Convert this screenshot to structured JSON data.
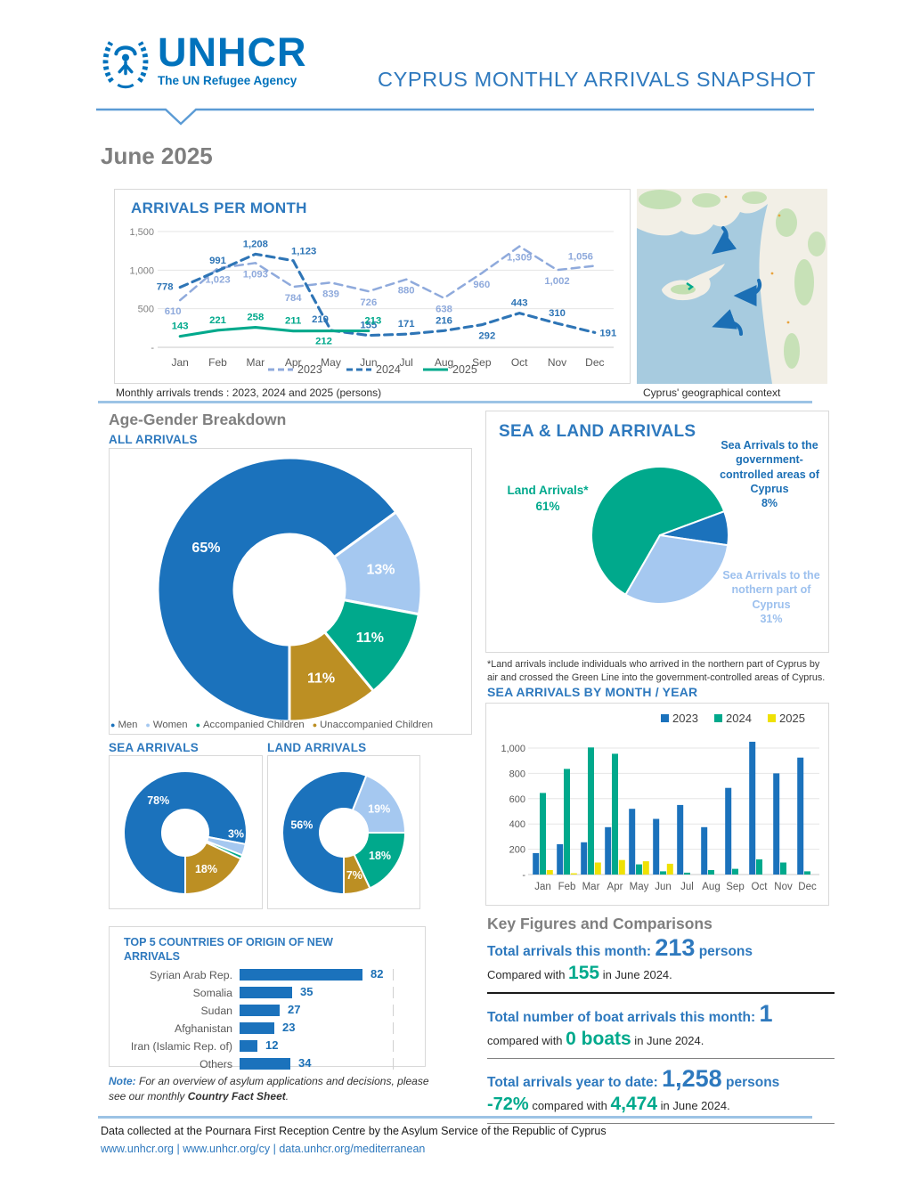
{
  "header": {
    "title": "CYPRUS MONTHLY ARRIVALS SNAPSHOT",
    "logo": {
      "name": "UNHCR",
      "tagline": "The UN Refugee Agency"
    }
  },
  "period": "June 2025",
  "sections": {
    "age_gender_heading": "Age-Gender Breakdown",
    "map_caption": "Cyprus' geographical context"
  },
  "colors": {
    "brand_blue": "#0072BC",
    "heading_blue": "#2E79BE",
    "dark_blue": "#1B72BC",
    "light_blue": "#8FAADC",
    "pale_blue": "#A5C8F0",
    "teal": "#00A98C",
    "gold": "#BC8F23",
    "yellow": "#EFE104",
    "gray_heading": "#7F7F7F"
  },
  "chart_data": [
    {
      "id": "arrivals_per_month",
      "type": "line",
      "title": "ARRIVALS PER MONTH",
      "caption": "Monthly arrivals trends : 2023, 2024 and 2025 (persons)",
      "categories": [
        "Jan",
        "Feb",
        "Mar",
        "Apr",
        "May",
        "Jun",
        "Jul",
        "Aug",
        "Sep",
        "Oct",
        "Nov",
        "Dec"
      ],
      "ylim": [
        0,
        1500
      ],
      "yticks": [
        {
          "v": 0,
          "label": "-"
        },
        {
          "v": 500,
          "label": "500"
        },
        {
          "v": 1000,
          "label": "1,000"
        },
        {
          "v": 1500,
          "label": "1,500"
        }
      ],
      "grid": true,
      "legend_position": "bottom",
      "series": [
        {
          "name": "2023",
          "line": "dashed",
          "color": "#8FAADC",
          "values": [
            610,
            1023,
            1093,
            784,
            839,
            726,
            880,
            638,
            960,
            1309,
            1002,
            1056
          ]
        },
        {
          "name": "2024",
          "line": "dashed",
          "color": "#2E75B6",
          "values": [
            778,
            991,
            1208,
            1123,
            219,
            155,
            171,
            216,
            292,
            443,
            310,
            191
          ]
        },
        {
          "name": "2025",
          "line": "solid",
          "color": "#00A98C",
          "values": [
            143,
            221,
            258,
            211,
            212,
            213
          ]
        }
      ]
    },
    {
      "id": "all_arrivals",
      "type": "donut",
      "title": "ALL ARRIVALS",
      "start_angle": 180,
      "slices": [
        {
          "label": "Men",
          "pct": 65,
          "color": "#1B72BC"
        },
        {
          "label": "Women",
          "pct": 13,
          "color": "#A5C8F0"
        },
        {
          "label": "Accompanied Children",
          "pct": 11,
          "color": "#00A98C"
        },
        {
          "label": "Unaccompanied Children",
          "pct": 11,
          "color": "#BC8F23"
        }
      ],
      "legend": [
        "Men",
        "Women",
        "Accompanied Children",
        "Unaccompanied Children"
      ]
    },
    {
      "id": "sea_arrivals",
      "type": "donut",
      "title": "SEA ARRIVALS",
      "start_angle": 180,
      "slices": [
        {
          "label": "Men",
          "pct": 78,
          "color": "#1B72BC"
        },
        {
          "label": "Women",
          "pct": 3,
          "color": "#A5C8F0"
        },
        {
          "label": "Accompanied Children",
          "pct": 1,
          "color": "#00A98C"
        },
        {
          "label": "Unaccompanied Children",
          "pct": 18,
          "color": "#BC8F23"
        }
      ]
    },
    {
      "id": "land_arrivals",
      "type": "donut",
      "title": "LAND ARRIVALS",
      "start_angle": 180,
      "slices": [
        {
          "label": "Men",
          "pct": 56,
          "color": "#1B72BC"
        },
        {
          "label": "Women",
          "pct": 19,
          "color": "#A5C8F0"
        },
        {
          "label": "Accompanied Children",
          "pct": 18,
          "color": "#00A98C"
        },
        {
          "label": "Unaccompanied Children",
          "pct": 7,
          "color": "#BC8F23"
        }
      ]
    },
    {
      "id": "sea_land",
      "type": "pie",
      "title": "SEA & LAND ARRIVALS",
      "start_angle": 210,
      "slices": [
        {
          "label": "Land Arrivals*",
          "pct": 61,
          "color": "#00A98C"
        },
        {
          "label": "Sea Arrivals to the government-controlled areas of Cyprus",
          "pct": 8,
          "color": "#1B72BC"
        },
        {
          "label": "Sea Arrivals to the nothern part of Cyprus",
          "pct": 31,
          "color": "#A5C8F0"
        }
      ],
      "footnote": "*Land arrivals include individuals who arrived in the northern part of Cyprus by air and crossed the Green Line into the government-controlled areas of Cyprus."
    },
    {
      "id": "sea_by_month",
      "type": "bar",
      "title": "SEA ARRIVALS BY MONTH / YEAR",
      "categories": [
        "Jan",
        "Feb",
        "Mar",
        "Apr",
        "May",
        "Jun",
        "Jul",
        "Aug",
        "Sep",
        "Oct",
        "Nov",
        "Dec"
      ],
      "ylim": [
        0,
        1100
      ],
      "yticks": [
        {
          "v": 0,
          "label": "-"
        },
        {
          "v": 200,
          "label": "200"
        },
        {
          "v": 400,
          "label": "400"
        },
        {
          "v": 600,
          "label": "600"
        },
        {
          "v": 800,
          "label": "800"
        },
        {
          "v": 1000,
          "label": "1,000"
        }
      ],
      "legend_position": "top-right",
      "series": [
        {
          "name": "2023",
          "color": "#1B72BC",
          "values": [
            170,
            240,
            255,
            375,
            520,
            440,
            550,
            375,
            685,
            1050,
            800,
            925
          ]
        },
        {
          "name": "2024",
          "color": "#00A98C",
          "values": [
            645,
            835,
            1005,
            955,
            80,
            25,
            15,
            35,
            45,
            120,
            95,
            25
          ]
        },
        {
          "name": "2025",
          "color": "#EFE104",
          "values": [
            35,
            10,
            95,
            115,
            105,
            85,
            null,
            null,
            null,
            null,
            null,
            null
          ]
        }
      ]
    },
    {
      "id": "top5_countries",
      "type": "hbar",
      "title": "TOP 5 COUNTRIES OF ORIGIN OF NEW ARRIVALS",
      "categories": [
        "Syrian Arab Rep.",
        "Somalia",
        "Sudan",
        "Afghanistan",
        "Iran (Islamic Rep. of)",
        "Others"
      ],
      "values": [
        82,
        35,
        27,
        23,
        12,
        34
      ],
      "xlim": [
        0,
        100
      ]
    }
  ],
  "key_figures": {
    "heading": "Key Figures and Comparisons",
    "rows": [
      {
        "label": "Total arrivals this month: ",
        "value": "213",
        "suffix": " persons",
        "cmp_pre": "Compared with ",
        "cmp_val": "155",
        "cmp_post": " in June 2024."
      },
      {
        "label": "Total number of boat arrivals this month: ",
        "value": "1",
        "suffix": "",
        "cmp_pre": "compared with ",
        "cmp_val": "0 boats",
        "cmp_post": " in June 2024."
      },
      {
        "label": "Total arrivals year to date: ",
        "value": "1,258",
        "suffix": " persons",
        "delta": "-72%",
        "cmp_pre": " compared with ",
        "cmp_val": "4,474",
        "cmp_post": " in June 2024."
      }
    ]
  },
  "note": {
    "prefix": "Note:",
    "body": " For an overview of asylum applications and decisions, please see our monthly ",
    "bold": "Country Fact Sheet",
    "suffix": "."
  },
  "footer": {
    "source": "Data collected at the Pournara First Reception Centre by the Asylum Service of the Republic of Cyprus",
    "links": [
      "www.unhcr.org",
      "www.unhcr.org/cy",
      "data.unhcr.org/mediterranean"
    ]
  }
}
